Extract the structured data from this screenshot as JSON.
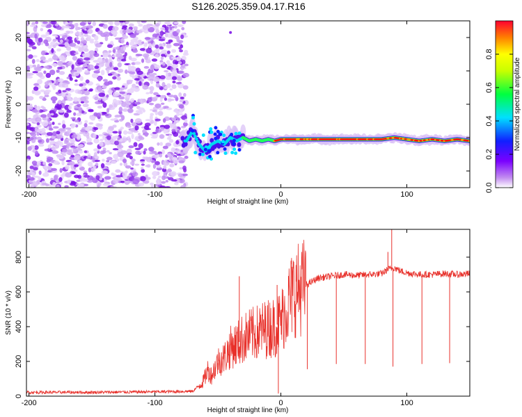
{
  "figure_title": "S126.2025.359.04.17.R16",
  "chart_data": [
    {
      "type": "heatmap",
      "title": "S126.2025.359.04.17.R16",
      "xlabel": "Height of straight line (km)",
      "ylabel": "Frequency (Hz)",
      "xlim": [
        -202,
        150
      ],
      "ylim": [
        -25,
        25
      ],
      "xticks": [
        -200,
        -100,
        0,
        100
      ],
      "yticks": [
        -20,
        -10,
        0,
        10,
        20
      ],
      "noise_region_x": [
        -202,
        -75
      ],
      "signal_trace": {
        "x": [
          -75,
          -70,
          -65,
          -60,
          -55,
          -50,
          -45,
          -40,
          -35,
          -30,
          -25,
          -20,
          -15,
          -10,
          -5,
          0,
          20,
          40,
          60,
          80,
          90,
          100,
          110,
          120,
          130,
          140,
          150
        ],
        "freq": [
          -11,
          -8,
          -12,
          -14,
          -12,
          -11,
          -12,
          -10,
          -11,
          -10,
          -11,
          -10.5,
          -11,
          -10.5,
          -11,
          -10.5,
          -10.5,
          -10.5,
          -10.5,
          -10.5,
          -10,
          -10.5,
          -11,
          -10.5,
          -11,
          -10.5,
          -11
        ]
      },
      "colorbar": {
        "label": "Normalized spectral amplitude",
        "ticks": [
          0.0,
          0.2,
          0.4,
          0.6,
          0.8
        ],
        "range": [
          0.0,
          1.0
        ]
      }
    },
    {
      "type": "line",
      "xlabel": "Height of straight line (km)",
      "ylabel": "SNR (10 * v/v)",
      "xlim": [
        -202,
        150
      ],
      "ylim": [
        0,
        960
      ],
      "xticks": [
        -200,
        -100,
        0,
        100
      ],
      "yticks": [
        0,
        200,
        400,
        600,
        800
      ],
      "line_color": "#e8302a",
      "series": [
        {
          "name": "SNR",
          "x": [
            -202,
            -150,
            -100,
            -70,
            -62,
            -58,
            -55,
            -50,
            -45,
            -40,
            -35,
            -30,
            -25,
            -20,
            -15,
            -10,
            -5,
            0,
            5,
            10,
            15,
            20,
            25,
            30,
            40,
            50,
            60,
            70,
            80,
            85,
            90,
            95,
            100,
            110,
            120,
            130,
            140,
            150
          ],
          "values": [
            22,
            22,
            25,
            28,
            80,
            150,
            120,
            200,
            220,
            280,
            300,
            330,
            350,
            360,
            380,
            390,
            400,
            430,
            520,
            600,
            620,
            640,
            660,
            680,
            690,
            700,
            695,
            700,
            705,
            730,
            740,
            720,
            710,
            700,
            700,
            705,
            700,
            705
          ]
        }
      ],
      "spikes_down": [
        {
          "x": -2,
          "y": 15
        },
        {
          "x": 21,
          "y": 155
        },
        {
          "x": 44,
          "y": 185
        },
        {
          "x": 67,
          "y": 185
        },
        {
          "x": 89,
          "y": 170
        },
        {
          "x": 112,
          "y": 185
        },
        {
          "x": 134,
          "y": 190
        }
      ],
      "spikes_up": [
        {
          "x": -33,
          "y": 690
        },
        {
          "x": -3,
          "y": 640
        },
        {
          "x": 88,
          "y": 960
        },
        {
          "x": 85,
          "y": 830
        }
      ]
    }
  ]
}
